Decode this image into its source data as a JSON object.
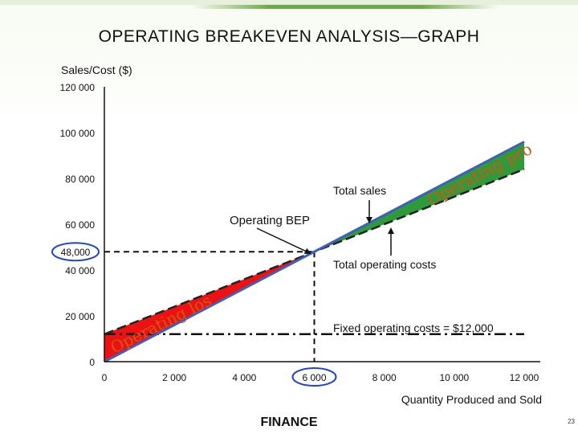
{
  "slide": {
    "title": "OPERATING BREAKEVEN ANALYSIS—GRAPH",
    "footer": "FINANCE",
    "page_number": "23"
  },
  "colors": {
    "sales_line": "#3f5fbf",
    "cost_line": "#222222",
    "profit_fill": "#2f9a3a",
    "loss_fill": "#ee1111",
    "bep_circle": "#2244cc"
  },
  "chart_data": {
    "type": "line",
    "title": "",
    "ylabel": "Sales/Cost ($)",
    "xlabel": "Quantity Produced and Sold",
    "xlim": [
      0,
      12000
    ],
    "ylim": [
      0,
      120000
    ],
    "x_tick_labels": [
      "0",
      "2 000",
      "4 000",
      "6 000",
      "8 000",
      "10 000",
      "12 000"
    ],
    "x_ticks": [
      0,
      2000,
      4000,
      6000,
      8000,
      10000,
      12000
    ],
    "y_tick_labels": [
      "0",
      "20 000",
      "40 000",
      "48,000",
      "60 000",
      "80 000",
      "100 000",
      "120 000"
    ],
    "y_ticks": [
      0,
      20000,
      40000,
      48000,
      60000,
      80000,
      100000,
      120000
    ],
    "series": [
      {
        "name": "Total sales",
        "x": [
          0,
          12000
        ],
        "values": [
          0,
          96000
        ]
      },
      {
        "name": "Total operating costs",
        "x": [
          0,
          12000
        ],
        "values": [
          12000,
          84000
        ]
      },
      {
        "name": "",
        "x": [
          0,
          12000
        ],
        "values": [
          12000,
          12000
        ]
      }
    ],
    "breakeven": {
      "x": 6000,
      "y": 48000,
      "label": "Operating BEP"
    },
    "annotations": {
      "total_sales": "Total sales",
      "total_costs": "Total operating costs",
      "fixed_costs": "Fixed operating costs = $12,000",
      "profit_region": "Operating profit",
      "loss_region": "Operating loss"
    },
    "grid": false
  }
}
